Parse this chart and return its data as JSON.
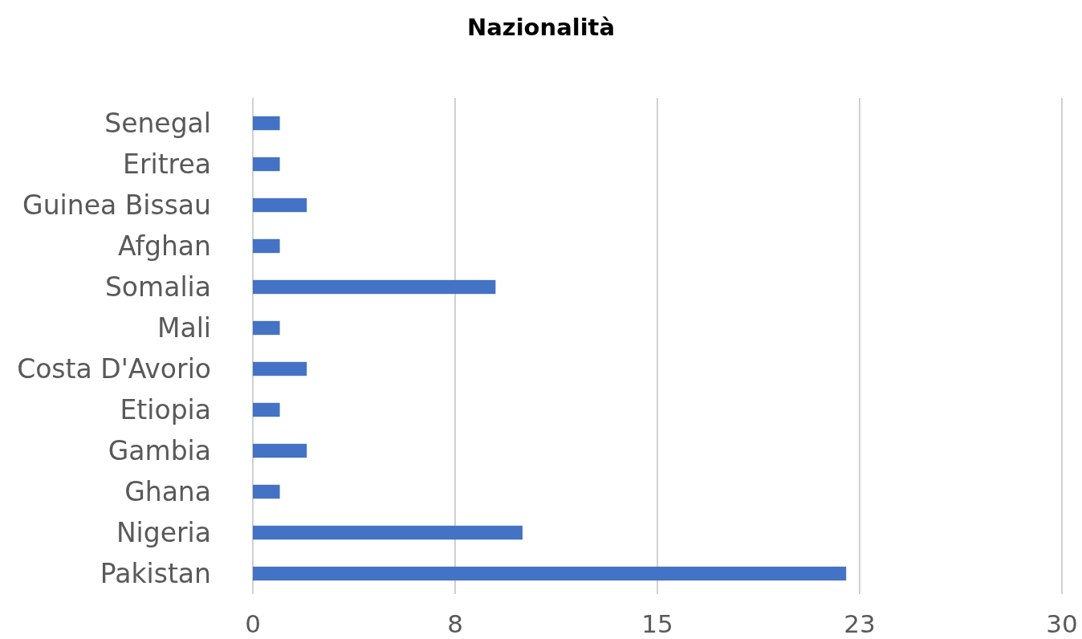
{
  "chart_data": {
    "type": "bar",
    "orientation": "horizontal",
    "title": "Nazionalità",
    "categories": [
      "Senegal",
      "Eritrea",
      "Guinea Bissau",
      "Afghan",
      "Somalia",
      "Mali",
      "Costa D'Avorio",
      "Etiopia",
      "Gambia",
      "Ghana",
      "Nigeria",
      "Pakistan"
    ],
    "values": [
      1,
      1,
      2,
      1,
      9,
      1,
      2,
      1,
      2,
      1,
      10,
      22
    ],
    "color": "#4472c4",
    "xlim": [
      0,
      30
    ],
    "xticks": [
      0,
      {
        "value": 7.5,
        "label": "8"
      },
      15,
      {
        "value": 22.5,
        "label": "23"
      },
      30
    ],
    "grid": "x"
  }
}
